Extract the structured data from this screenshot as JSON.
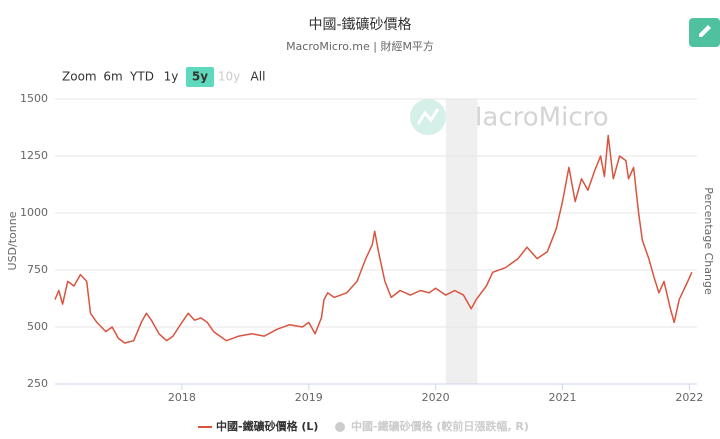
{
  "chart_data": {
    "type": "line",
    "title": "中國-鐵礦砂價格",
    "subtitle": "MacroMicro.me | 財經M平方",
    "watermark": "MacroMicro",
    "y_label": "USD/tonne",
    "y2_label": "Percentage Change",
    "range_selector": {
      "label": "Zoom",
      "buttons": [
        {
          "label": "6m"
        },
        {
          "label": "YTD"
        },
        {
          "label": "1y"
        },
        {
          "label": "5y",
          "selected": true
        },
        {
          "label": "10y",
          "disabled": true
        },
        {
          "label": "All"
        }
      ]
    },
    "x": [
      2017.0,
      2017.03,
      2017.06,
      2017.1,
      2017.15,
      2017.2,
      2017.25,
      2017.28,
      2017.33,
      2017.4,
      2017.45,
      2017.5,
      2017.55,
      2017.62,
      2017.68,
      2017.72,
      2017.76,
      2017.82,
      2017.88,
      2017.93,
      2018.0,
      2018.05,
      2018.1,
      2018.15,
      2018.2,
      2018.25,
      2018.3,
      2018.35,
      2018.45,
      2018.55,
      2018.65,
      2018.75,
      2018.85,
      2018.95,
      2019.0,
      2019.05,
      2019.1,
      2019.12,
      2019.15,
      2019.2,
      2019.3,
      2019.38,
      2019.45,
      2019.5,
      2019.52,
      2019.55,
      2019.6,
      2019.65,
      2019.72,
      2019.8,
      2019.88,
      2019.95,
      2020.0,
      2020.08,
      2020.15,
      2020.22,
      2020.28,
      2020.32,
      2020.4,
      2020.45,
      2020.55,
      2020.65,
      2020.72,
      2020.8,
      2020.88,
      2020.95,
      2021.0,
      2021.05,
      2021.1,
      2021.15,
      2021.2,
      2021.25,
      2021.3,
      2021.33,
      2021.36,
      2021.4,
      2021.45,
      2021.5,
      2021.52,
      2021.56,
      2021.6,
      2021.63,
      2021.68,
      2021.72,
      2021.76,
      2021.8,
      2021.85,
      2021.88,
      2021.92,
      2021.97,
      2022.02
    ],
    "series": [
      {
        "name": "中國-鐵礦砂價格 (L)",
        "color": "#d9543f",
        "values": [
          620,
          660,
          600,
          700,
          680,
          730,
          700,
          560,
          520,
          480,
          500,
          450,
          430,
          440,
          520,
          560,
          530,
          470,
          440,
          460,
          520,
          560,
          530,
          540,
          520,
          480,
          460,
          440,
          460,
          470,
          460,
          490,
          510,
          500,
          520,
          470,
          540,
          620,
          650,
          630,
          650,
          700,
          800,
          860,
          920,
          830,
          700,
          630,
          660,
          640,
          660,
          650,
          670,
          640,
          660,
          640,
          580,
          620,
          680,
          740,
          760,
          800,
          850,
          800,
          830,
          930,
          1050,
          1200,
          1050,
          1150,
          1100,
          1180,
          1250,
          1160,
          1340,
          1150,
          1250,
          1230,
          1150,
          1200,
          1000,
          880,
          800,
          720,
          650,
          700,
          580,
          520,
          620,
          680,
          740
        ]
      }
    ],
    "hidden_series": [
      {
        "name": "中國-鐵礦砂價格 (較前日漲跌幅, R)",
        "color": "#cccccc"
      }
    ],
    "shaded_range": [
      2020.08,
      2020.33
    ],
    "xlim": [
      2017.0,
      2022.06
    ],
    "xticks": [
      2018,
      2019,
      2020,
      2021,
      2022
    ],
    "ylim": [
      250,
      1500
    ],
    "yticks": [
      250,
      500,
      750,
      1000,
      1250,
      1500
    ],
    "grid": true
  }
}
